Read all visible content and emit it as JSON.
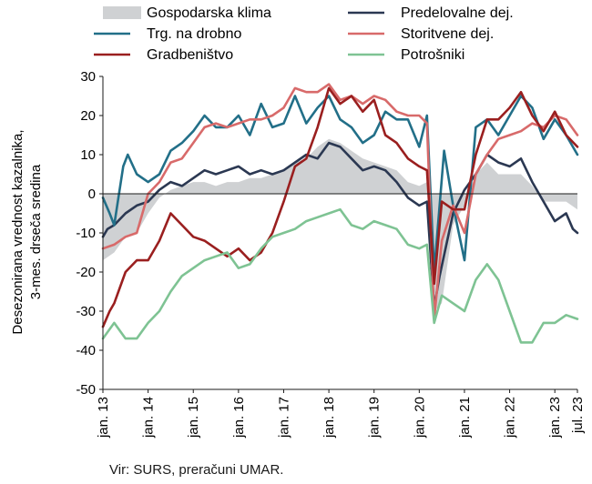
{
  "chart_data": {
    "type": "line",
    "title": "",
    "ylabel_lines": [
      "Desezonirana vrednost kazalnika,",
      "3-mes. drseča sredina"
    ],
    "ylim": [
      -50,
      30
    ],
    "yticks": [
      30,
      20,
      10,
      0,
      -10,
      -20,
      -30,
      -40,
      -50
    ],
    "x_start": 2013.0,
    "x_end": 2023.5,
    "xticks": [
      {
        "x": 2013,
        "label": "jan. 13"
      },
      {
        "x": 2014,
        "label": "jan. 14"
      },
      {
        "x": 2015,
        "label": "jan. 15"
      },
      {
        "x": 2016,
        "label": "jan. 16"
      },
      {
        "x": 2017,
        "label": "jan. 17"
      },
      {
        "x": 2018,
        "label": "jan. 18"
      },
      {
        "x": 2019,
        "label": "jan. 19"
      },
      {
        "x": 2020,
        "label": "jan. 20"
      },
      {
        "x": 2021,
        "label": "jan. 21"
      },
      {
        "x": 2022,
        "label": "jan. 22"
      },
      {
        "x": 2023,
        "label": "jan. 23"
      },
      {
        "x": 2023.5,
        "label": "jul. 23"
      }
    ],
    "grid": false,
    "legend_position": "top",
    "series": [
      {
        "name": "Gospodarska klima",
        "style": "area",
        "color": "#cfd1d3",
        "points": [
          [
            2013.0,
            -17
          ],
          [
            2013.25,
            -15
          ],
          [
            2013.5,
            -11
          ],
          [
            2013.75,
            -10
          ],
          [
            2014.0,
            -5
          ],
          [
            2014.25,
            -1
          ],
          [
            2014.5,
            1
          ],
          [
            2014.75,
            2
          ],
          [
            2015.0,
            3
          ],
          [
            2015.25,
            3
          ],
          [
            2015.5,
            2
          ],
          [
            2015.75,
            3
          ],
          [
            2016.0,
            3
          ],
          [
            2016.25,
            4
          ],
          [
            2016.5,
            4
          ],
          [
            2016.75,
            5
          ],
          [
            2017.0,
            6
          ],
          [
            2017.25,
            8
          ],
          [
            2017.5,
            9
          ],
          [
            2017.75,
            12
          ],
          [
            2018.0,
            14
          ],
          [
            2018.25,
            13
          ],
          [
            2018.5,
            11
          ],
          [
            2018.75,
            9
          ],
          [
            2019.0,
            8
          ],
          [
            2019.25,
            7
          ],
          [
            2019.5,
            6
          ],
          [
            2019.75,
            3
          ],
          [
            2020.0,
            2
          ],
          [
            2020.17,
            3
          ],
          [
            2020.33,
            -30
          ],
          [
            2020.5,
            -28
          ],
          [
            2020.75,
            -8
          ],
          [
            2021.0,
            -3
          ],
          [
            2021.25,
            5
          ],
          [
            2021.5,
            8
          ],
          [
            2021.75,
            5
          ],
          [
            2022.0,
            5
          ],
          [
            2022.25,
            5
          ],
          [
            2022.5,
            2
          ],
          [
            2022.75,
            -2
          ],
          [
            2023.0,
            -2
          ],
          [
            2023.25,
            -2
          ],
          [
            2023.5,
            -4
          ]
        ]
      },
      {
        "name": "Predelovalne dej.",
        "style": "line",
        "color": "#2b3852",
        "points": [
          [
            2013.0,
            -11
          ],
          [
            2013.1,
            -9
          ],
          [
            2013.25,
            -8
          ],
          [
            2013.5,
            -5
          ],
          [
            2013.75,
            -3
          ],
          [
            2014.0,
            -2
          ],
          [
            2014.25,
            1
          ],
          [
            2014.5,
            3
          ],
          [
            2014.75,
            2
          ],
          [
            2015.0,
            4
          ],
          [
            2015.25,
            6
          ],
          [
            2015.5,
            5
          ],
          [
            2015.75,
            6
          ],
          [
            2016.0,
            7
          ],
          [
            2016.25,
            5
          ],
          [
            2016.5,
            6
          ],
          [
            2016.75,
            5
          ],
          [
            2017.0,
            6
          ],
          [
            2017.25,
            8
          ],
          [
            2017.5,
            10
          ],
          [
            2017.75,
            9
          ],
          [
            2018.0,
            13
          ],
          [
            2018.25,
            12
          ],
          [
            2018.5,
            9
          ],
          [
            2018.75,
            6
          ],
          [
            2019.0,
            7
          ],
          [
            2019.25,
            6
          ],
          [
            2019.5,
            3
          ],
          [
            2019.75,
            -1
          ],
          [
            2020.0,
            -3
          ],
          [
            2020.17,
            -2
          ],
          [
            2020.33,
            -29
          ],
          [
            2020.45,
            -21
          ],
          [
            2020.75,
            -5
          ],
          [
            2021.0,
            1
          ],
          [
            2021.25,
            5
          ],
          [
            2021.5,
            10
          ],
          [
            2021.75,
            8
          ],
          [
            2022.0,
            7
          ],
          [
            2022.25,
            9
          ],
          [
            2022.5,
            3
          ],
          [
            2022.75,
            -2
          ],
          [
            2023.0,
            -7
          ],
          [
            2023.25,
            -5
          ],
          [
            2023.4,
            -9
          ],
          [
            2023.5,
            -10
          ]
        ]
      },
      {
        "name": "Trg. na drobno",
        "style": "line",
        "color": "#226f88",
        "points": [
          [
            2013.0,
            -1
          ],
          [
            2013.15,
            -5
          ],
          [
            2013.25,
            -8
          ],
          [
            2013.45,
            7
          ],
          [
            2013.55,
            10
          ],
          [
            2013.75,
            5
          ],
          [
            2014.0,
            3
          ],
          [
            2014.25,
            5
          ],
          [
            2014.5,
            11
          ],
          [
            2014.75,
            13
          ],
          [
            2015.0,
            16
          ],
          [
            2015.25,
            20
          ],
          [
            2015.5,
            17
          ],
          [
            2015.75,
            17
          ],
          [
            2016.0,
            20
          ],
          [
            2016.25,
            15
          ],
          [
            2016.5,
            23
          ],
          [
            2016.75,
            17
          ],
          [
            2017.0,
            18
          ],
          [
            2017.25,
            25
          ],
          [
            2017.5,
            18
          ],
          [
            2017.75,
            22
          ],
          [
            2018.0,
            25
          ],
          [
            2018.25,
            19
          ],
          [
            2018.5,
            17
          ],
          [
            2018.75,
            13
          ],
          [
            2019.0,
            15
          ],
          [
            2019.25,
            21
          ],
          [
            2019.5,
            19
          ],
          [
            2019.75,
            19
          ],
          [
            2020.0,
            12
          ],
          [
            2020.17,
            20
          ],
          [
            2020.33,
            -20
          ],
          [
            2020.55,
            11
          ],
          [
            2020.75,
            -3
          ],
          [
            2021.0,
            -17
          ],
          [
            2021.25,
            17
          ],
          [
            2021.5,
            19
          ],
          [
            2021.75,
            15
          ],
          [
            2022.0,
            20
          ],
          [
            2022.25,
            25
          ],
          [
            2022.5,
            22
          ],
          [
            2022.75,
            14
          ],
          [
            2023.0,
            19
          ],
          [
            2023.25,
            15
          ],
          [
            2023.5,
            10
          ]
        ]
      },
      {
        "name": "Storitvene dej.",
        "style": "line",
        "color": "#d86a6a",
        "points": [
          [
            2013.0,
            -14
          ],
          [
            2013.25,
            -13
          ],
          [
            2013.5,
            -11
          ],
          [
            2013.75,
            -10
          ],
          [
            2014.0,
            0
          ],
          [
            2014.25,
            3
          ],
          [
            2014.5,
            8
          ],
          [
            2014.75,
            9
          ],
          [
            2015.0,
            13
          ],
          [
            2015.25,
            17
          ],
          [
            2015.5,
            18
          ],
          [
            2015.75,
            17
          ],
          [
            2016.0,
            18
          ],
          [
            2016.25,
            19
          ],
          [
            2016.5,
            19
          ],
          [
            2016.75,
            20
          ],
          [
            2017.0,
            22
          ],
          [
            2017.25,
            27
          ],
          [
            2017.5,
            26
          ],
          [
            2017.75,
            26
          ],
          [
            2018.0,
            28
          ],
          [
            2018.25,
            24
          ],
          [
            2018.5,
            25
          ],
          [
            2018.75,
            23
          ],
          [
            2019.0,
            25
          ],
          [
            2019.25,
            24
          ],
          [
            2019.5,
            21
          ],
          [
            2019.75,
            20
          ],
          [
            2020.0,
            20
          ],
          [
            2020.17,
            18
          ],
          [
            2020.33,
            -32
          ],
          [
            2020.5,
            -12
          ],
          [
            2020.75,
            -3
          ],
          [
            2021.0,
            -10
          ],
          [
            2021.25,
            5
          ],
          [
            2021.5,
            10
          ],
          [
            2021.75,
            14
          ],
          [
            2022.0,
            15
          ],
          [
            2022.25,
            16
          ],
          [
            2022.5,
            18
          ],
          [
            2022.75,
            17
          ],
          [
            2023.0,
            20
          ],
          [
            2023.25,
            19
          ],
          [
            2023.5,
            15
          ]
        ]
      },
      {
        "name": "Gradbeništvo",
        "style": "line",
        "color": "#9a1f1f",
        "points": [
          [
            2013.0,
            -34
          ],
          [
            2013.15,
            -30
          ],
          [
            2013.25,
            -28
          ],
          [
            2013.5,
            -20
          ],
          [
            2013.75,
            -17
          ],
          [
            2014.0,
            -17
          ],
          [
            2014.25,
            -12
          ],
          [
            2014.5,
            -5
          ],
          [
            2014.75,
            -8
          ],
          [
            2015.0,
            -11
          ],
          [
            2015.25,
            -12
          ],
          [
            2015.5,
            -14
          ],
          [
            2015.75,
            -16
          ],
          [
            2016.0,
            -14
          ],
          [
            2016.25,
            -17
          ],
          [
            2016.5,
            -15
          ],
          [
            2016.75,
            -10
          ],
          [
            2017.0,
            -2
          ],
          [
            2017.25,
            7
          ],
          [
            2017.5,
            9
          ],
          [
            2017.75,
            17
          ],
          [
            2018.0,
            27
          ],
          [
            2018.25,
            23
          ],
          [
            2018.5,
            25
          ],
          [
            2018.75,
            21
          ],
          [
            2019.0,
            24
          ],
          [
            2019.25,
            15
          ],
          [
            2019.5,
            13
          ],
          [
            2019.75,
            9
          ],
          [
            2020.0,
            7
          ],
          [
            2020.17,
            6
          ],
          [
            2020.33,
            -23
          ],
          [
            2020.5,
            -2
          ],
          [
            2020.75,
            -4
          ],
          [
            2021.0,
            -4
          ],
          [
            2021.25,
            10
          ],
          [
            2021.5,
            19
          ],
          [
            2021.75,
            19
          ],
          [
            2022.0,
            22
          ],
          [
            2022.25,
            26
          ],
          [
            2022.5,
            20
          ],
          [
            2022.75,
            16
          ],
          [
            2023.0,
            21
          ],
          [
            2023.25,
            15
          ],
          [
            2023.5,
            12
          ]
        ]
      },
      {
        "name": "Potrošniki",
        "style": "line",
        "color": "#7ec393",
        "points": [
          [
            2013.0,
            -37
          ],
          [
            2013.25,
            -33
          ],
          [
            2013.5,
            -37
          ],
          [
            2013.75,
            -37
          ],
          [
            2014.0,
            -33
          ],
          [
            2014.25,
            -30
          ],
          [
            2014.5,
            -25
          ],
          [
            2014.75,
            -21
          ],
          [
            2015.0,
            -19
          ],
          [
            2015.25,
            -17
          ],
          [
            2015.5,
            -16
          ],
          [
            2015.75,
            -15
          ],
          [
            2016.0,
            -19
          ],
          [
            2016.25,
            -18
          ],
          [
            2016.5,
            -14
          ],
          [
            2016.75,
            -11
          ],
          [
            2017.0,
            -10
          ],
          [
            2017.25,
            -9
          ],
          [
            2017.5,
            -7
          ],
          [
            2017.75,
            -6
          ],
          [
            2018.0,
            -5
          ],
          [
            2018.25,
            -4
          ],
          [
            2018.5,
            -8
          ],
          [
            2018.75,
            -9
          ],
          [
            2019.0,
            -7
          ],
          [
            2019.25,
            -8
          ],
          [
            2019.5,
            -9
          ],
          [
            2019.75,
            -13
          ],
          [
            2020.0,
            -14
          ],
          [
            2020.17,
            -13
          ],
          [
            2020.33,
            -33
          ],
          [
            2020.5,
            -26
          ],
          [
            2020.75,
            -28
          ],
          [
            2021.0,
            -30
          ],
          [
            2021.25,
            -22
          ],
          [
            2021.5,
            -18
          ],
          [
            2021.75,
            -22
          ],
          [
            2022.0,
            -30
          ],
          [
            2022.25,
            -38
          ],
          [
            2022.5,
            -38
          ],
          [
            2022.75,
            -33
          ],
          [
            2023.0,
            -33
          ],
          [
            2023.25,
            -31
          ],
          [
            2023.5,
            -32
          ]
        ]
      }
    ],
    "source": "Vir: SURS, preračuni UMAR."
  }
}
